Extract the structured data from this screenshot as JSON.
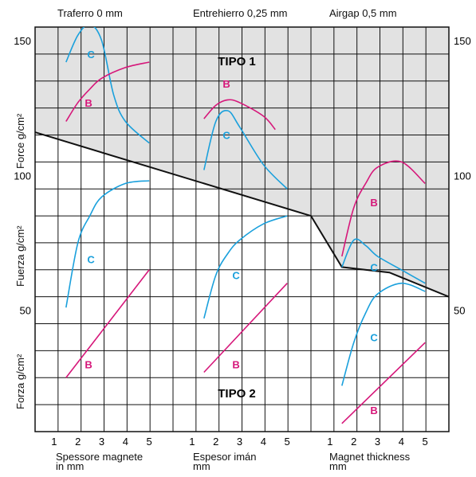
{
  "headers": [
    "Traferro 0 mm",
    "Entrehierro 0,25 mm",
    "Airgap 0,5 mm"
  ],
  "y_axis_labels": [
    "Force g/cm²",
    "Fuerza g/cm²",
    "Forza g/cm²"
  ],
  "x_axis_labels": [
    {
      "line1": "Spessore magnete",
      "line2": "in mm"
    },
    {
      "line1": "Espesor imán",
      "line2": "mm"
    },
    {
      "line1": "Magnet thickness",
      "line2": "mm"
    }
  ],
  "zones": {
    "upper": "TIPO 1",
    "lower": "TIPO 2"
  },
  "colors": {
    "C": "#1aa0dc",
    "B": "#d6177a",
    "boundary": "#111111",
    "shade": "#e2e2e2",
    "grid": "#111111"
  },
  "chart_data": {
    "type": "line",
    "ylim": [
      5,
      155
    ],
    "y_ticks": [
      50,
      100,
      150
    ],
    "grid_y_step": 10,
    "panels": [
      {
        "header": "Traferro 0 mm",
        "x_ticks": [
          1,
          2,
          3,
          4,
          5
        ],
        "xlim": [
          0.2,
          6.0
        ],
        "series": [
          {
            "name": "C",
            "label_at": [
              2.55,
              145
            ],
            "points": [
              [
                1.5,
                142
              ],
              [
                2.0,
                152
              ],
              [
                2.5,
                156
              ],
              [
                3.0,
                150
              ],
              [
                3.5,
                130
              ],
              [
                4.0,
                120
              ],
              [
                5.0,
                112
              ]
            ]
          },
          {
            "name": "B",
            "label_at": [
              2.45,
              127
            ],
            "points": [
              [
                1.5,
                120
              ],
              [
                2.0,
                127
              ],
              [
                2.5,
                132
              ],
              [
                3.0,
                136
              ],
              [
                4.0,
                140
              ],
              [
                5.0,
                142
              ]
            ]
          },
          {
            "name": "C",
            "label_at": [
              2.55,
              69
            ],
            "points": [
              [
                1.5,
                51
              ],
              [
                2.0,
                75
              ],
              [
                2.5,
                85
              ],
              [
                3.0,
                92
              ],
              [
                4.0,
                97
              ],
              [
                5.0,
                98
              ]
            ]
          },
          {
            "name": "B",
            "label_at": [
              2.45,
              30
            ],
            "points": [
              [
                1.5,
                25
              ],
              [
                5.0,
                65
              ]
            ]
          }
        ]
      },
      {
        "header": "Entrehierro 0,25 mm",
        "x_ticks": [
          1,
          2,
          3,
          4,
          5
        ],
        "xlim": [
          0.2,
          6.0
        ],
        "series": [
          {
            "name": "B",
            "label_at": [
              2.45,
              134
            ],
            "points": [
              [
                1.5,
                121
              ],
              [
                2.0,
                126
              ],
              [
                2.5,
                128
              ],
              [
                3.0,
                127
              ],
              [
                4.0,
                122
              ],
              [
                4.5,
                117
              ]
            ]
          },
          {
            "name": "C",
            "label_at": [
              2.45,
              115
            ],
            "points": [
              [
                1.5,
                102
              ],
              [
                2.0,
                120
              ],
              [
                2.5,
                124
              ],
              [
                3.0,
                118
              ],
              [
                4.0,
                104
              ],
              [
                5.0,
                95
              ]
            ]
          },
          {
            "name": "C",
            "label_at": [
              2.85,
              63
            ],
            "points": [
              [
                1.5,
                47
              ],
              [
                2.0,
                63
              ],
              [
                2.5,
                71
              ],
              [
                3.0,
                76
              ],
              [
                4.0,
                82
              ],
              [
                5.0,
                85
              ]
            ]
          },
          {
            "name": "B",
            "label_at": [
              2.85,
              30
            ],
            "points": [
              [
                1.5,
                27
              ],
              [
                5.0,
                60
              ]
            ]
          }
        ]
      },
      {
        "header": "Airgap 0,5 mm",
        "x_ticks": [
          1,
          2,
          3,
          4,
          5
        ],
        "xlim": [
          0.2,
          6.0
        ],
        "series": [
          {
            "name": "B",
            "label_at": [
              2.85,
              90
            ],
            "points": [
              [
                1.5,
                70
              ],
              [
                2.0,
                88
              ],
              [
                2.5,
                97
              ],
              [
                3.0,
                103
              ],
              [
                4.0,
                105
              ],
              [
                5.0,
                97
              ]
            ]
          },
          {
            "name": "C",
            "label_at": [
              2.85,
              66
            ],
            "points": [
              [
                1.5,
                66
              ],
              [
                2.0,
                76
              ],
              [
                2.5,
                74
              ],
              [
                3.0,
                70
              ],
              [
                4.0,
                65
              ],
              [
                5.0,
                60
              ]
            ]
          },
          {
            "name": "C",
            "label_at": [
              2.85,
              40
            ],
            "points": [
              [
                1.5,
                22
              ],
              [
                2.0,
                38
              ],
              [
                2.5,
                49
              ],
              [
                3.0,
                56
              ],
              [
                4.0,
                60
              ],
              [
                5.0,
                57
              ]
            ]
          },
          {
            "name": "B",
            "label_at": [
              2.85,
              13
            ],
            "points": [
              [
                1.5,
                8
              ],
              [
                5.0,
                38
              ]
            ]
          }
        ]
      }
    ],
    "boundary_points": [
      [
        0.2,
        1,
        116
      ],
      [
        6.0,
        2,
        85
      ],
      [
        1.5,
        3,
        66
      ],
      [
        3.5,
        3,
        64
      ],
      [
        6.0,
        3,
        55
      ]
    ]
  }
}
